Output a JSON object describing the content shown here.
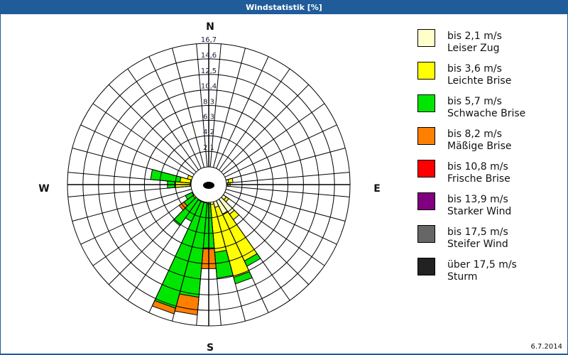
{
  "window": {
    "title": "Windstatistik [%]"
  },
  "footer": {
    "date": "6.7.2014"
  },
  "compass": {
    "n": "N",
    "e": "E",
    "s": "S",
    "w": "W"
  },
  "legend": [
    {
      "range": "bis 2,1 m/s",
      "name": "Leiser Zug",
      "color": "#ffffcc"
    },
    {
      "range": "bis 3,6 m/s",
      "name": "Leichte Brise",
      "color": "#ffff00"
    },
    {
      "range": "bis 5,7 m/s",
      "name": "Schwache Brise",
      "color": "#00e600"
    },
    {
      "range": "bis 8,2 m/s",
      "name": "Mäßige Brise",
      "color": "#ff8000"
    },
    {
      "range": "bis 10,8 m/s",
      "name": "Frische Brise",
      "color": "#ff0000"
    },
    {
      "range": "bis 13,9 m/s",
      "name": "Starker Wind",
      "color": "#800080"
    },
    {
      "range": "bis 17,5 m/s",
      "name": "Steifer Wind",
      "color": "#666666"
    },
    {
      "range": "über 17,5 m/s",
      "name": "Sturm",
      "color": "#222222"
    }
  ],
  "chart_data": {
    "type": "windrose",
    "title": "Windstatistik [%]",
    "radial_unit": "%",
    "ring_labels": [
      "2,1",
      "4,2",
      "6,3",
      "8,3",
      "10,4",
      "12,5",
      "14,6",
      "16,7"
    ],
    "ring_values": [
      2.1,
      4.2,
      6.3,
      8.3,
      10.4,
      12.5,
      14.6,
      16.7
    ],
    "rmax": 16.7,
    "sector_width_deg": 10,
    "directions_labels": [
      "N",
      "E",
      "S",
      "W"
    ],
    "speed_classes": [
      "bis 2,1 m/s",
      "bis 3,6 m/s",
      "bis 5,7 m/s",
      "bis 8,2 m/s",
      "bis 10,8 m/s",
      "bis 13,9 m/s",
      "bis 17,5 m/s",
      "über 17,5 m/s"
    ],
    "sectors": [
      {
        "dir": 80,
        "cum": [
          0.3,
          0.9
        ]
      },
      {
        "dir": 90,
        "cum": [
          0.2,
          0.5
        ]
      },
      {
        "dir": 130,
        "cum": [
          0.5,
          0.9
        ]
      },
      {
        "dir": 140,
        "cum": [
          2.5,
          3.4
        ]
      },
      {
        "dir": 150,
        "cum": [
          2.0,
          9.0,
          9.8
        ]
      },
      {
        "dir": 160,
        "cum": [
          0.8,
          10.6,
          11.5
        ]
      },
      {
        "dir": 170,
        "cum": [
          0.3,
          6.8,
          10.3
        ]
      },
      {
        "dir": 180,
        "cum": [
          0.0,
          0.2,
          6.2,
          9.0
        ]
      },
      {
        "dir": 190,
        "cum": [
          0.0,
          0.1,
          12.9,
          15.3
        ]
      },
      {
        "dir": 200,
        "cum": [
          0.0,
          0.1,
          14.9,
          15.7
        ]
      },
      {
        "dir": 210,
        "cum": [
          0.0,
          0.1,
          3.1
        ]
      },
      {
        "dir": 220,
        "cum": [
          0.0,
          0.0,
          4.4
        ]
      },
      {
        "dir": 230,
        "cum": [
          0.0,
          0.2,
          1.7,
          2.5
        ]
      },
      {
        "dir": 240,
        "cum": [
          0.0,
          0.1,
          1.1
        ]
      },
      {
        "dir": 270,
        "cum": [
          0.1,
          2.2,
          3.2
        ]
      },
      {
        "dir": 280,
        "cum": [
          0.1,
          1.5,
          5.5
        ]
      },
      {
        "dir": 290,
        "cum": [
          0.0,
          0.6
        ]
      }
    ]
  }
}
